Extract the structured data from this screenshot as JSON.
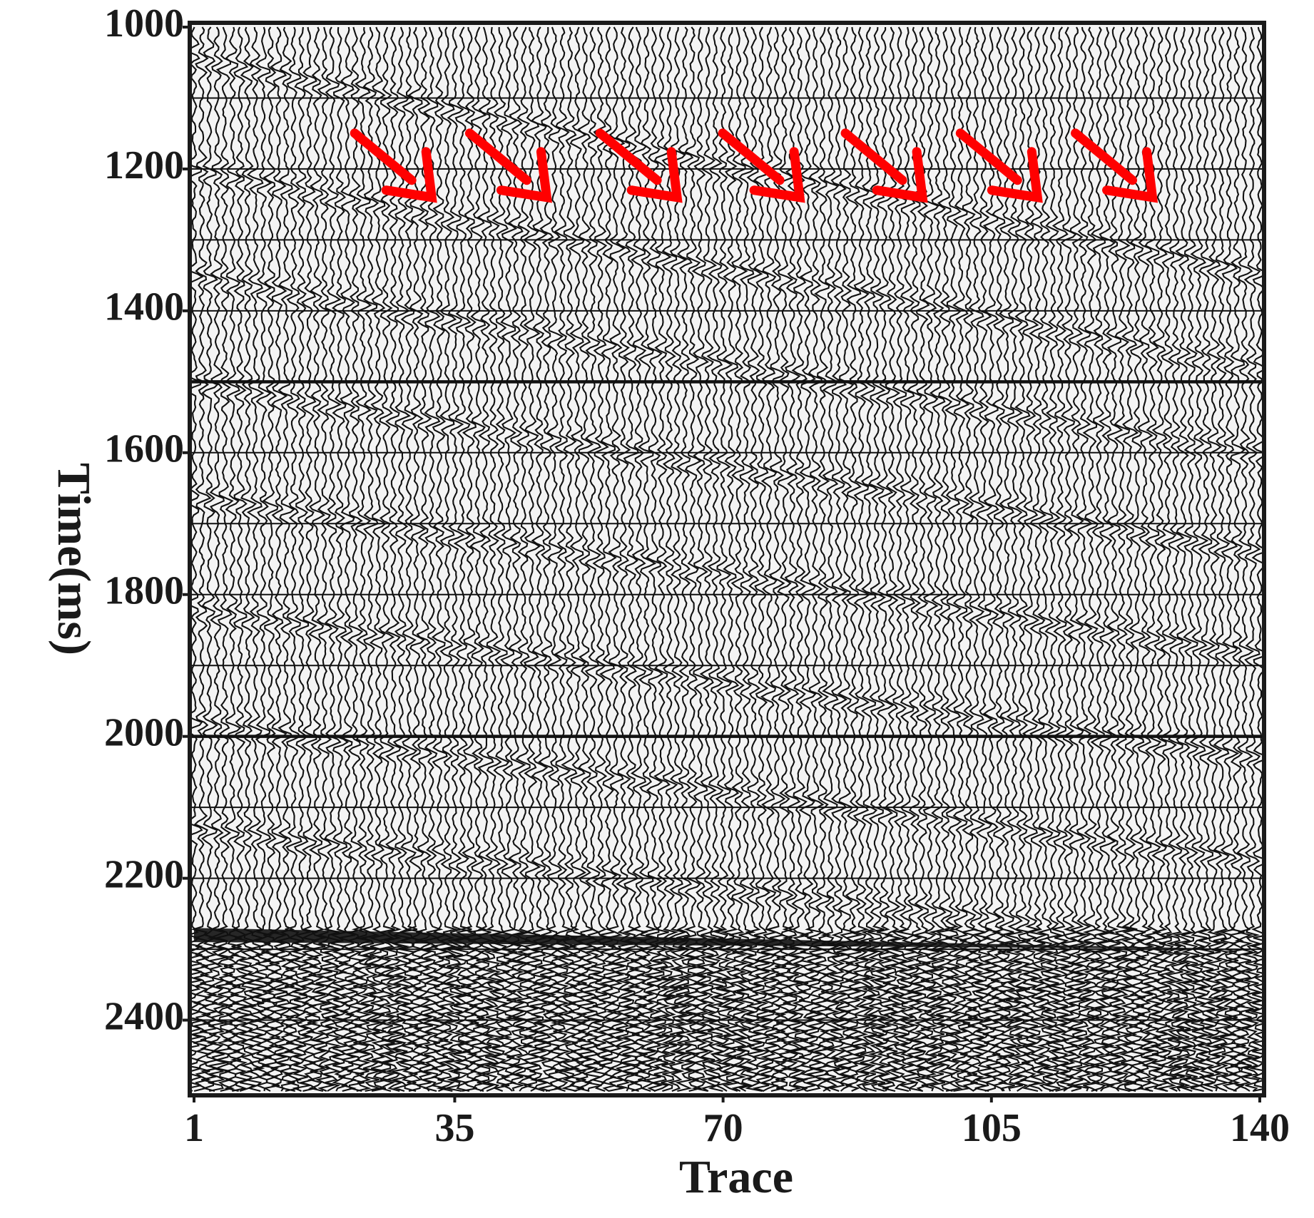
{
  "chart_data": {
    "type": "heatmap",
    "subtype": "seismic-wiggle-section",
    "xlabel": "Trace",
    "ylabel": "Time(ms)",
    "xlim": [
      1,
      140
    ],
    "ylim": [
      1000,
      2500
    ],
    "y_inverted": true,
    "x_ticks": [
      1,
      35,
      70,
      105,
      140
    ],
    "x_tick_labels": [
      "1",
      "35",
      "70",
      "105",
      "140"
    ],
    "y_ticks": [
      1000,
      1200,
      1400,
      1600,
      1800,
      2000,
      2200,
      2400
    ],
    "y_tick_labels": [
      "1000",
      "1200",
      "1400",
      "1600",
      "1800",
      "2000",
      "2200",
      "2400"
    ],
    "grid": true,
    "grid_interval_ms": 100,
    "heavy_grid_lines_ms": [
      1500,
      2000
    ],
    "noise_zone_start_ms": 2270,
    "noise_zone_end_ms": 2300,
    "n_traces": 140,
    "events": [
      {
        "t_start_ms": 1040,
        "slope_ms_per_trace": 2.2
      },
      {
        "t_start_ms": 1200,
        "slope_ms_per_trace": 2.0
      },
      {
        "t_start_ms": 1350,
        "slope_ms_per_trace": 1.8
      },
      {
        "t_start_ms": 1500,
        "slope_ms_per_trace": 1.7
      },
      {
        "t_start_ms": 1660,
        "slope_ms_per_trace": 1.6
      },
      {
        "t_start_ms": 1820,
        "slope_ms_per_trace": 1.5
      },
      {
        "t_start_ms": 1980,
        "slope_ms_per_trace": 1.4
      },
      {
        "t_start_ms": 2130,
        "slope_ms_per_trace": 1.2
      }
    ],
    "annotations": {
      "arrow_color": "#ff0000",
      "arrows": [
        {
          "trace": 32,
          "time_ms": 1240
        },
        {
          "trace": 47,
          "time_ms": 1240
        },
        {
          "trace": 64,
          "time_ms": 1240
        },
        {
          "trace": 80,
          "time_ms": 1240
        },
        {
          "trace": 96,
          "time_ms": 1240
        },
        {
          "trace": 111,
          "time_ms": 1240
        },
        {
          "trace": 126,
          "time_ms": 1240
        }
      ]
    },
    "colors": {
      "ink": "#111111",
      "paper": "#ffffff",
      "frame": "#1a1a1a"
    }
  }
}
